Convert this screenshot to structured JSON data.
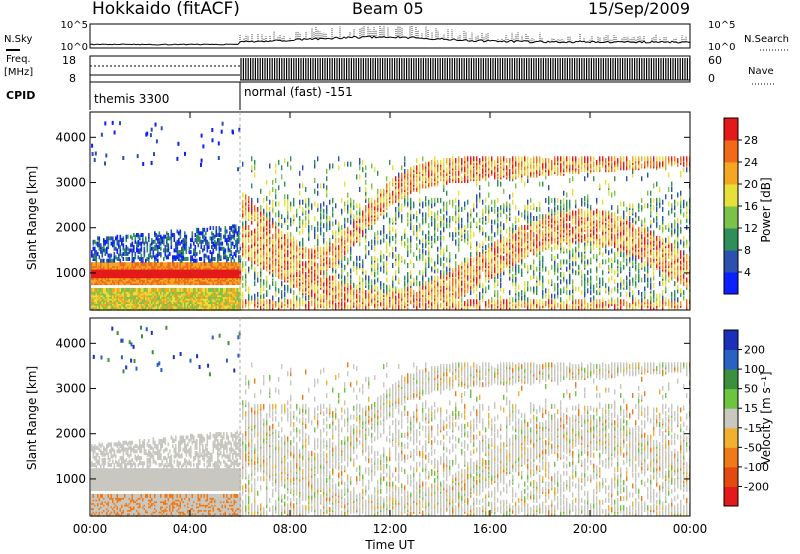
{
  "header": {
    "station": "Hokkaido (fitACF)",
    "beam": "Beam 05",
    "date": "15/Sep/2009"
  },
  "status": {
    "nsky_label": "N.Sky",
    "nsearch_label": "N.Search",
    "counts_top_tick": "10^5",
    "counts_bottom_tick": "10^0",
    "freq_label_line1": "Freq.",
    "freq_label_line2": "[MHz]",
    "freq_ticks": [
      "18",
      "8"
    ],
    "nave_label": "Nave",
    "nave_ticks": [
      "60",
      "0"
    ],
    "cpid_label": "CPID",
    "cpid_segments": [
      {
        "label": "themis 3300",
        "start_hour": 0,
        "end_hour": 6
      },
      {
        "label": "normal (fast) -151",
        "start_hour": 6,
        "end_hour": 24
      }
    ]
  },
  "chart_data": [
    {
      "type": "heatmap",
      "name": "power",
      "ylabel": "Slant Range [km]",
      "yticks": [
        "1000",
        "2000",
        "3000",
        "4000"
      ],
      "ylim": [
        180,
        4560
      ],
      "xlim": [
        0,
        24
      ],
      "colorbar": {
        "label": "Power [dB]",
        "ticks": [
          "4",
          "8",
          "12",
          "16",
          "20",
          "24",
          "28"
        ],
        "colors": [
          "#0a20ff",
          "#2b50b0",
          "#2f8f5a",
          "#7bc24a",
          "#e8e03a",
          "#f5a623",
          "#f06a1a",
          "#e41a1a"
        ]
      }
    },
    {
      "type": "heatmap",
      "name": "velocity",
      "ylabel": "Slant Range [km]",
      "yticks": [
        "1000",
        "2000",
        "3000",
        "4000"
      ],
      "ylim": [
        180,
        4560
      ],
      "xlim": [
        0,
        24
      ],
      "xlabel": "Time UT",
      "xticks": [
        "00:00",
        "04:00",
        "08:00",
        "12:00",
        "16:00",
        "20:00",
        "00:00"
      ],
      "colorbar": {
        "label": "Velocity [m s⁻¹]",
        "ticks": [
          "200",
          "100",
          "50",
          "15",
          "-15",
          "-50",
          "-100",
          "-200"
        ],
        "colors": [
          "#1b2fb8",
          "#2a61c4",
          "#3c8f3c",
          "#6cc43f",
          "#c8c8c0",
          "#f0b030",
          "#f07a18",
          "#e44a10",
          "#e41a1a"
        ]
      }
    }
  ]
}
